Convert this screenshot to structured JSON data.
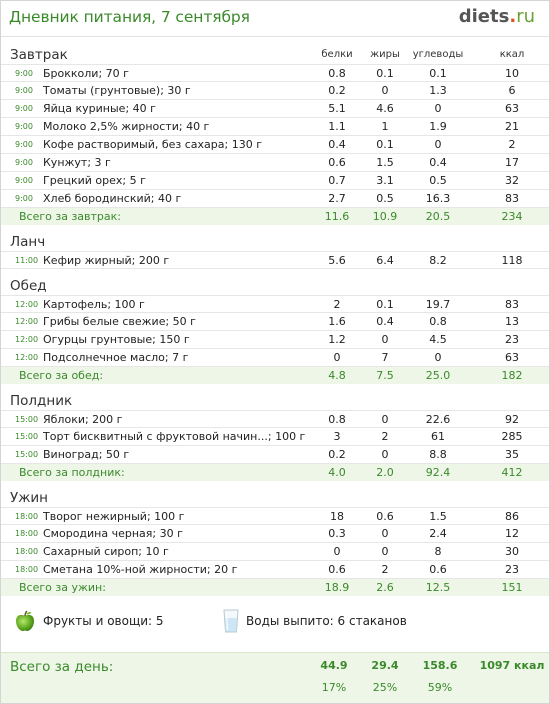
{
  "header": {
    "title": "Дневник питания, 7 сентября",
    "logo_main": "diets",
    "logo_dot": ".",
    "logo_tld": "ru"
  },
  "columns": {
    "protein": "белки",
    "fat": "жиры",
    "carbs": "углеводы",
    "kcal": "ккал"
  },
  "meals": [
    {
      "title": "Завтрак",
      "items": [
        {
          "time": "9:00",
          "name": "Брокколи; 70 г",
          "p": "0.8",
          "f": "0.1",
          "c": "0.1",
          "k": "10"
        },
        {
          "time": "9:00",
          "name": "Томаты (грунтовые); 30 г",
          "p": "0.2",
          "f": "0",
          "c": "1.3",
          "k": "6"
        },
        {
          "time": "9:00",
          "name": "Яйца куриные; 40 г",
          "p": "5.1",
          "f": "4.6",
          "c": "0",
          "k": "63"
        },
        {
          "time": "9:00",
          "name": "Молоко 2,5% жирности; 40 г",
          "p": "1.1",
          "f": "1",
          "c": "1.9",
          "k": "21"
        },
        {
          "time": "9:00",
          "name": "Кофе растворимый, без сахара; 130 г",
          "p": "0.4",
          "f": "0.1",
          "c": "0",
          "k": "2"
        },
        {
          "time": "9:00",
          "name": "Кунжут; 3 г",
          "p": "0.6",
          "f": "1.5",
          "c": "0.4",
          "k": "17"
        },
        {
          "time": "9:00",
          "name": "Грецкий орех; 5 г",
          "p": "0.7",
          "f": "3.1",
          "c": "0.5",
          "k": "32"
        },
        {
          "time": "9:00",
          "name": "Хлеб бородинский; 40 г",
          "p": "2.7",
          "f": "0.5",
          "c": "16.3",
          "k": "83"
        }
      ],
      "total": {
        "label": "Всего за завтрак:",
        "p": "11.6",
        "f": "10.9",
        "c": "20.5",
        "k": "234"
      }
    },
    {
      "title": "Ланч",
      "items": [
        {
          "time": "11:00",
          "name": "Кефир жирный; 200 г",
          "p": "5.6",
          "f": "6.4",
          "c": "8.2",
          "k": "118"
        }
      ],
      "total": null
    },
    {
      "title": "Обед",
      "items": [
        {
          "time": "12:00",
          "name": "Картофель; 100 г",
          "p": "2",
          "f": "0.1",
          "c": "19.7",
          "k": "83"
        },
        {
          "time": "12:00",
          "name": "Грибы белые свежие; 50 г",
          "p": "1.6",
          "f": "0.4",
          "c": "0.8",
          "k": "13"
        },
        {
          "time": "12:00",
          "name": "Огурцы грунтовые; 150 г",
          "p": "1.2",
          "f": "0",
          "c": "4.5",
          "k": "23"
        },
        {
          "time": "12:00",
          "name": "Подсолнечное масло; 7 г",
          "p": "0",
          "f": "7",
          "c": "0",
          "k": "63"
        }
      ],
      "total": {
        "label": "Всего за обед:",
        "p": "4.8",
        "f": "7.5",
        "c": "25.0",
        "k": "182"
      }
    },
    {
      "title": "Полдник",
      "items": [
        {
          "time": "15:00",
          "name": "Яблоки; 200 г",
          "p": "0.8",
          "f": "0",
          "c": "22.6",
          "k": "92"
        },
        {
          "time": "15:00",
          "name": "Торт бисквитный с фруктовой начин...; 100 г",
          "p": "3",
          "f": "2",
          "c": "61",
          "k": "285"
        },
        {
          "time": "15:00",
          "name": "Виноград; 50 г",
          "p": "0.2",
          "f": "0",
          "c": "8.8",
          "k": "35"
        }
      ],
      "total": {
        "label": "Всего за полдник:",
        "p": "4.0",
        "f": "2.0",
        "c": "92.4",
        "k": "412"
      }
    },
    {
      "title": "Ужин",
      "items": [
        {
          "time": "18:00",
          "name": "Творог нежирный; 100 г",
          "p": "18",
          "f": "0.6",
          "c": "1.5",
          "k": "86"
        },
        {
          "time": "18:00",
          "name": "Смородина черная; 30 г",
          "p": "0.3",
          "f": "0",
          "c": "2.4",
          "k": "12"
        },
        {
          "time": "18:00",
          "name": "Сахарный сироп; 10 г",
          "p": "0",
          "f": "0",
          "c": "8",
          "k": "30"
        },
        {
          "time": "18:00",
          "name": "Сметана 10%-ной жирности; 20 г",
          "p": "0.6",
          "f": "2",
          "c": "0.6",
          "k": "23"
        }
      ],
      "total": {
        "label": "Всего за ужин:",
        "p": "18.9",
        "f": "2.6",
        "c": "12.5",
        "k": "151"
      }
    }
  ],
  "extras": {
    "fruits_label": "Фрукты и овощи: 5",
    "water_label": "Воды выпито: 6 стаканов",
    "apple_icon": "apple-icon",
    "glass_icon": "water-glass-icon"
  },
  "day_total": {
    "label": "Всего за день:",
    "p": "44.9",
    "f": "29.4",
    "c": "158.6",
    "k": "1097 ккал",
    "p_pct": "17%",
    "f_pct": "25%",
    "c_pct": "59%"
  },
  "colors": {
    "accent_green": "#3a8a2a",
    "total_bg": "#eef6e8",
    "logo_dot": "#e2511a"
  }
}
